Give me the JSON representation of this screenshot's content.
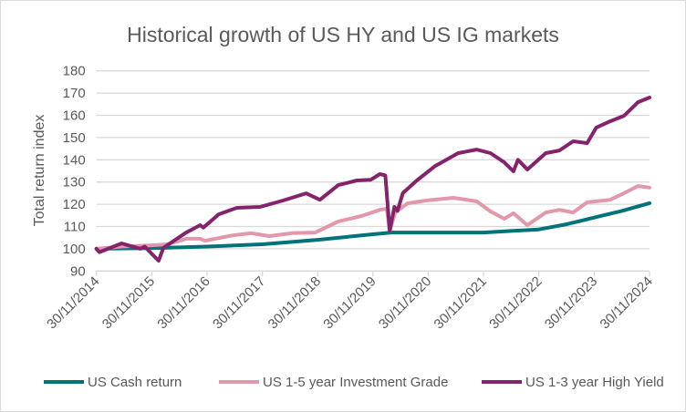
{
  "chart_data": {
    "type": "line",
    "title": "Historical growth of US HY and US IG markets",
    "xlabel": "",
    "ylabel": "Total return index",
    "ylim": [
      90,
      180
    ],
    "yticks": [
      90,
      100,
      110,
      120,
      130,
      140,
      150,
      160,
      170,
      180
    ],
    "xticks": [
      "30/11/2014",
      "30/11/2015",
      "30/11/2016",
      "30/11/2017",
      "30/11/2018",
      "30/11/2019",
      "30/11/2020",
      "30/11/2021",
      "30/11/2022",
      "30/11/2023",
      "30/11/2024"
    ],
    "xlim": [
      "2014-11-30",
      "2024-11-30"
    ],
    "grid": "horizontal",
    "legend": "bottom",
    "series": [
      {
        "name": "US Cash return",
        "color": "#00727a",
        "points": [
          [
            "2014-11-30",
            100
          ],
          [
            "2015-11-30",
            100.3
          ],
          [
            "2016-11-30",
            101
          ],
          [
            "2017-11-30",
            102
          ],
          [
            "2018-11-30",
            104
          ],
          [
            "2019-11-30",
            106.5
          ],
          [
            "2020-03-30",
            107.3
          ],
          [
            "2020-11-30",
            107.3
          ],
          [
            "2021-11-30",
            107.3
          ],
          [
            "2022-05-30",
            108
          ],
          [
            "2022-11-30",
            108.7
          ],
          [
            "2023-05-30",
            111
          ],
          [
            "2023-11-30",
            114
          ],
          [
            "2024-05-30",
            117
          ],
          [
            "2024-11-30",
            120.5
          ]
        ]
      },
      {
        "name": "US 1-5 year Investment Grade",
        "color": "#e397aa",
        "points": [
          [
            "2014-11-30",
            100
          ],
          [
            "2015-05-15",
            101
          ],
          [
            "2015-11-15",
            101.5
          ],
          [
            "2016-03-15",
            102
          ],
          [
            "2016-07-15",
            104.5
          ],
          [
            "2016-10-15",
            104.5
          ],
          [
            "2016-11-15",
            103.6
          ],
          [
            "2017-05-15",
            106
          ],
          [
            "2017-09-15",
            107
          ],
          [
            "2018-01-15",
            105.7
          ],
          [
            "2018-06-15",
            107
          ],
          [
            "2018-11-15",
            107.3
          ],
          [
            "2019-04-15",
            112.3
          ],
          [
            "2019-09-15",
            114.7
          ],
          [
            "2020-01-15",
            117.5
          ],
          [
            "2020-03-01",
            118
          ],
          [
            "2020-03-20",
            108
          ],
          [
            "2020-04-25",
            116.3
          ],
          [
            "2020-07-15",
            120.4
          ],
          [
            "2020-11-15",
            121.7
          ],
          [
            "2021-05-15",
            122.9
          ],
          [
            "2021-10-15",
            121.3
          ],
          [
            "2022-01-15",
            116.8
          ],
          [
            "2022-04-15",
            113.5
          ],
          [
            "2022-06-15",
            116
          ],
          [
            "2022-09-15",
            110.6
          ],
          [
            "2023-01-15",
            116.3
          ],
          [
            "2023-04-15",
            117.5
          ],
          [
            "2023-07-15",
            116.3
          ],
          [
            "2023-10-15",
            120.9
          ],
          [
            "2024-03-15",
            122
          ],
          [
            "2024-06-15",
            125
          ],
          [
            "2024-09-15",
            128.2
          ],
          [
            "2024-11-30",
            127.5
          ]
        ]
      },
      {
        "name": "US 1-3 year High Yield",
        "color": "#84236b",
        "points": [
          [
            "2014-11-30",
            100
          ],
          [
            "2014-12-20",
            98.5
          ],
          [
            "2015-05-15",
            102.4
          ],
          [
            "2015-09-15",
            100
          ],
          [
            "2015-10-15",
            101
          ],
          [
            "2016-01-15",
            94.6
          ],
          [
            "2016-02-15",
            100.4
          ],
          [
            "2016-07-15",
            107.3
          ],
          [
            "2016-10-15",
            110.6
          ],
          [
            "2016-11-05",
            109.5
          ],
          [
            "2017-02-15",
            115.5
          ],
          [
            "2017-06-15",
            118.4
          ],
          [
            "2017-11-15",
            118.8
          ],
          [
            "2018-04-15",
            121.7
          ],
          [
            "2018-09-15",
            124.9
          ],
          [
            "2018-12-15",
            122
          ],
          [
            "2019-04-15",
            128.6
          ],
          [
            "2019-08-15",
            130.7
          ],
          [
            "2019-11-15",
            131
          ],
          [
            "2020-01-15",
            133.6
          ],
          [
            "2020-02-20",
            133
          ],
          [
            "2020-03-20",
            108
          ],
          [
            "2020-04-20",
            118.8
          ],
          [
            "2020-05-10",
            117
          ],
          [
            "2020-06-15",
            125
          ],
          [
            "2020-09-15",
            130.7
          ],
          [
            "2021-01-15",
            137.2
          ],
          [
            "2021-06-15",
            143
          ],
          [
            "2021-10-15",
            144.6
          ],
          [
            "2022-01-15",
            143
          ],
          [
            "2022-04-15",
            138.9
          ],
          [
            "2022-06-15",
            134.8
          ],
          [
            "2022-07-15",
            140
          ],
          [
            "2022-09-15",
            135.6
          ],
          [
            "2023-01-15",
            143
          ],
          [
            "2023-04-15",
            144.2
          ],
          [
            "2023-07-15",
            148.3
          ],
          [
            "2023-10-15",
            147.5
          ],
          [
            "2023-12-15",
            154.5
          ],
          [
            "2024-03-15",
            157.3
          ],
          [
            "2024-06-15",
            159.8
          ],
          [
            "2024-09-15",
            165.9
          ],
          [
            "2024-11-30",
            168
          ]
        ]
      }
    ]
  }
}
